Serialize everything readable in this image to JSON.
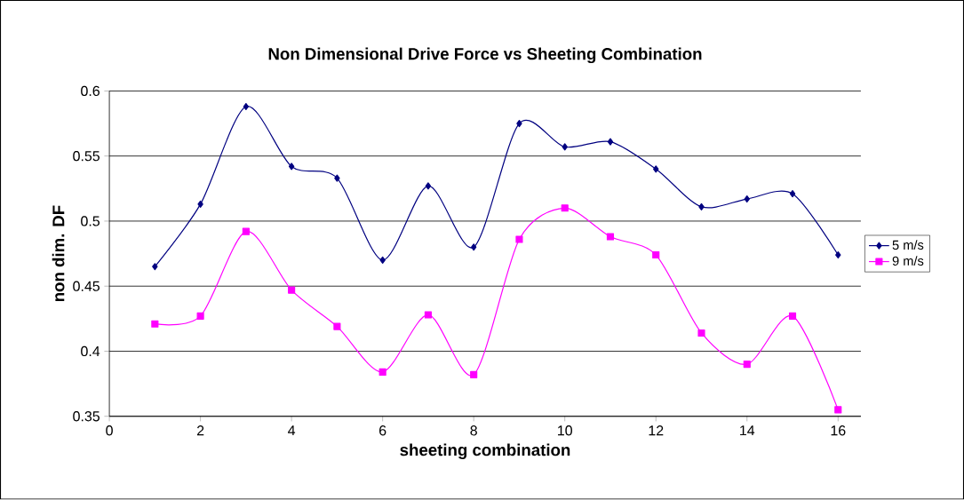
{
  "chart_data": {
    "type": "line",
    "title": "Non Dimensional Drive Force vs Sheeting Combination",
    "xlabel": "sheeting combination",
    "ylabel": "non dim. DF",
    "x": [
      1,
      2,
      3,
      4,
      5,
      6,
      7,
      8,
      9,
      10,
      11,
      12,
      13,
      14,
      15,
      16
    ],
    "series": [
      {
        "name": "5 m/s",
        "color": "#000080",
        "marker": "diamond",
        "values": [
          0.465,
          0.513,
          0.588,
          0.542,
          0.533,
          0.47,
          0.527,
          0.48,
          0.575,
          0.557,
          0.561,
          0.54,
          0.511,
          0.517,
          0.521,
          0.474
        ]
      },
      {
        "name": "9 m/s",
        "color": "#ff00ff",
        "marker": "square",
        "values": [
          0.421,
          0.427,
          0.492,
          0.447,
          0.419,
          0.384,
          0.428,
          0.382,
          0.486,
          0.51,
          0.488,
          0.474,
          0.414,
          0.39,
          0.427,
          0.355
        ]
      }
    ],
    "xlim": [
      0,
      16.5
    ],
    "xticks": [
      0,
      2,
      4,
      6,
      8,
      10,
      12,
      14,
      16
    ],
    "ylim": [
      0.35,
      0.6
    ],
    "yticks": [
      0.35,
      0.4,
      0.45,
      0.5,
      0.55,
      0.6
    ],
    "grid": "y",
    "legend": "right",
    "line_style": "solid"
  }
}
